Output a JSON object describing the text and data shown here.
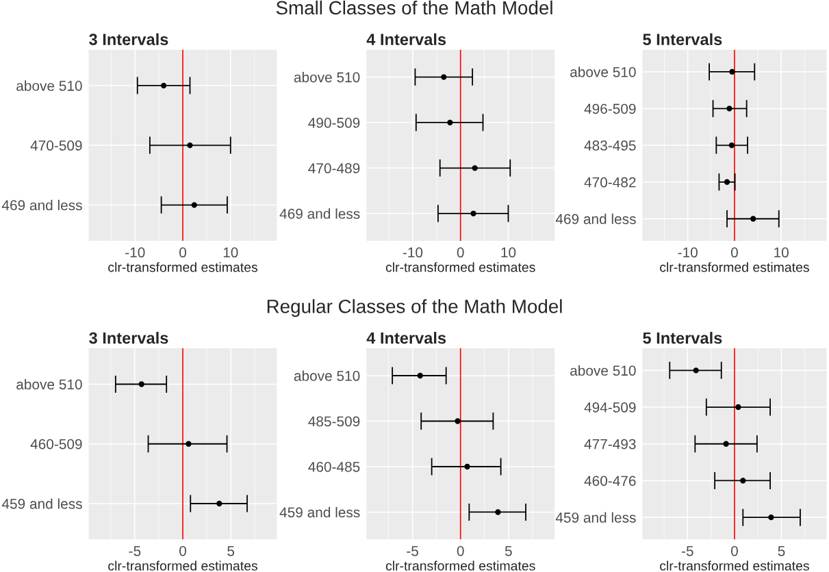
{
  "chart_data": [
    {
      "type": "scatter",
      "orientation": "horizontal",
      "title": "3 Intervals",
      "xlabel": "clr-transformed estimates",
      "annotations": [
        "Small Classes of the Math Model"
      ],
      "categories": [
        "above 510",
        "470-509",
        "469 and less"
      ],
      "series": [
        {
          "color": "#000000",
          "values": [
            -4.0,
            1.5,
            2.4
          ],
          "errors": [
            [
              -9.5,
              1.5
            ],
            [
              -6.9,
              10.0
            ],
            [
              -4.5,
              9.3
            ]
          ]
        }
      ],
      "xlim": [
        -19.7,
        19.7
      ],
      "xticks": [
        -10,
        0,
        10
      ],
      "ref_lines": [
        {
          "axis": "x",
          "value": 0,
          "color": "#ff0000"
        }
      ],
      "grid": true,
      "marker": "circle"
    },
    {
      "type": "scatter",
      "orientation": "horizontal",
      "title": "4 Intervals",
      "xlabel": "clr-transformed estimates",
      "categories": [
        "above 510",
        "490-509",
        "470-489",
        "469 and less"
      ],
      "series": [
        {
          "color": "#000000",
          "values": [
            -3.5,
            -2.2,
            3.0,
            2.7
          ],
          "errors": [
            [
              -9.5,
              2.5
            ],
            [
              -9.3,
              4.7
            ],
            [
              -4.3,
              10.4
            ],
            [
              -4.7,
              10.0
            ]
          ]
        }
      ],
      "xlim": [
        -19.7,
        19.7
      ],
      "xticks": [
        -10,
        0,
        10
      ],
      "ref_lines": [
        {
          "axis": "x",
          "value": 0,
          "color": "#ff0000"
        }
      ],
      "grid": true,
      "marker": "circle"
    },
    {
      "type": "scatter",
      "orientation": "horizontal",
      "title": "5 Intervals",
      "xlabel": "clr-transformed estimates",
      "categories": [
        "above 510",
        "496-509",
        "483-495",
        "470-482",
        "469 and less"
      ],
      "series": [
        {
          "color": "#000000",
          "values": [
            -0.5,
            -1.1,
            -0.6,
            -1.6,
            4.0
          ],
          "errors": [
            [
              -5.4,
              4.3
            ],
            [
              -4.6,
              2.6
            ],
            [
              -3.9,
              2.8
            ],
            [
              -3.3,
              0.1
            ],
            [
              -1.6,
              9.5
            ]
          ]
        }
      ],
      "xlim": [
        -19.7,
        19.7
      ],
      "xticks": [
        -10,
        0,
        10
      ],
      "ref_lines": [
        {
          "axis": "x",
          "value": 0,
          "color": "#ff0000"
        }
      ],
      "grid": true,
      "marker": "circle"
    },
    {
      "type": "scatter",
      "orientation": "horizontal",
      "title": "3 Intervals",
      "xlabel": "clr-transformed estimates",
      "annotations": [
        "Regular Classes of the Math Model"
      ],
      "categories": [
        "above 510",
        "460-509",
        "459 and less"
      ],
      "series": [
        {
          "color": "#000000",
          "values": [
            -4.3,
            0.6,
            3.8
          ],
          "errors": [
            [
              -7.0,
              -1.7
            ],
            [
              -3.6,
              4.6
            ],
            [
              0.8,
              6.7
            ]
          ]
        }
      ],
      "xlim": [
        -9.8,
        9.8
      ],
      "xticks": [
        -5,
        0,
        5
      ],
      "ref_lines": [
        {
          "axis": "x",
          "value": 0,
          "color": "#ff0000"
        }
      ],
      "grid": true,
      "marker": "circle"
    },
    {
      "type": "scatter",
      "orientation": "horizontal",
      "title": "4 Intervals",
      "xlabel": "clr-transformed estimates",
      "categories": [
        "above 510",
        "485-509",
        "460-485",
        "459 and less"
      ],
      "series": [
        {
          "color": "#000000",
          "values": [
            -4.2,
            -0.3,
            0.7,
            3.9
          ],
          "errors": [
            [
              -7.1,
              -1.5
            ],
            [
              -4.1,
              3.4
            ],
            [
              -3.0,
              4.2
            ],
            [
              0.9,
              6.8
            ]
          ]
        }
      ],
      "xlim": [
        -9.8,
        9.8
      ],
      "xticks": [
        -5,
        0,
        5
      ],
      "ref_lines": [
        {
          "axis": "x",
          "value": 0,
          "color": "#ff0000"
        }
      ],
      "grid": true,
      "marker": "circle"
    },
    {
      "type": "scatter",
      "orientation": "horizontal",
      "title": "5 Intervals",
      "xlabel": "clr-transformed estimates",
      "categories": [
        "above 510",
        "494-509",
        "477-493",
        "460-476",
        "459 and less"
      ],
      "series": [
        {
          "color": "#000000",
          "values": [
            -4.1,
            0.4,
            -0.9,
            0.9,
            3.9
          ],
          "errors": [
            [
              -6.9,
              -1.4
            ],
            [
              -3.0,
              3.8
            ],
            [
              -4.2,
              2.4
            ],
            [
              -2.1,
              3.8
            ],
            [
              0.9,
              7.0
            ]
          ]
        }
      ],
      "xlim": [
        -9.8,
        9.8
      ],
      "xticks": [
        -5,
        0,
        5
      ],
      "ref_lines": [
        {
          "axis": "x",
          "value": 0,
          "color": "#ff0000"
        }
      ],
      "grid": true,
      "marker": "circle"
    }
  ]
}
